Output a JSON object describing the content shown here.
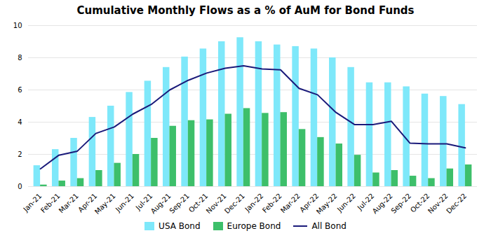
{
  "chart_data": {
    "type": "bar",
    "title": "Cumulative Monthly Flows as a % of AuM for Bond Funds",
    "categories": [
      "Jan-21",
      "Feb-21",
      "Mar-21",
      "Apr-21",
      "May-21",
      "Jun-21",
      "Jul-21",
      "Aug-21",
      "Sep-21",
      "Oct-21",
      "Nov-21",
      "Dec-21",
      "Jan-22",
      "Feb-22",
      "Mar-22",
      "Apr-22",
      "May-22",
      "Jun-22",
      "Jul-22",
      "Aug-22",
      "Sep-22",
      "Oct-22",
      "Nov-22",
      "Dec-22"
    ],
    "series": [
      {
        "name": "USA Bond",
        "type": "bar",
        "color": "#7ee8fa",
        "values": [
          1.3,
          2.3,
          3.0,
          4.3,
          5.0,
          5.85,
          6.55,
          7.4,
          8.05,
          8.55,
          9.0,
          9.25,
          9.0,
          8.8,
          8.7,
          8.55,
          8.0,
          7.4,
          6.45,
          6.45,
          6.2,
          5.75,
          5.6,
          5.1
        ]
      },
      {
        "name": "Europe Bond",
        "type": "bar",
        "color": "#3dbf6a",
        "values": [
          0.1,
          0.35,
          0.5,
          1.0,
          1.45,
          2.0,
          3.0,
          3.75,
          4.1,
          4.15,
          4.5,
          4.85,
          4.55,
          4.6,
          3.55,
          3.05,
          2.65,
          1.95,
          0.85,
          1.0,
          0.65,
          0.5,
          1.1,
          1.35
        ]
      },
      {
        "name": "All Bond",
        "type": "line",
        "color": "#1a1a7a",
        "values": [
          1.1,
          1.95,
          2.2,
          3.3,
          3.7,
          4.5,
          5.1,
          6.0,
          6.6,
          7.05,
          7.35,
          7.5,
          7.3,
          7.25,
          6.1,
          5.7,
          4.6,
          3.85,
          3.85,
          4.05,
          2.7,
          2.65,
          2.65,
          2.4
        ]
      }
    ],
    "ylim": [
      0,
      10
    ],
    "yticks": [
      0,
      2,
      4,
      6,
      8,
      10
    ],
    "grid": true,
    "legend": "bottom"
  }
}
